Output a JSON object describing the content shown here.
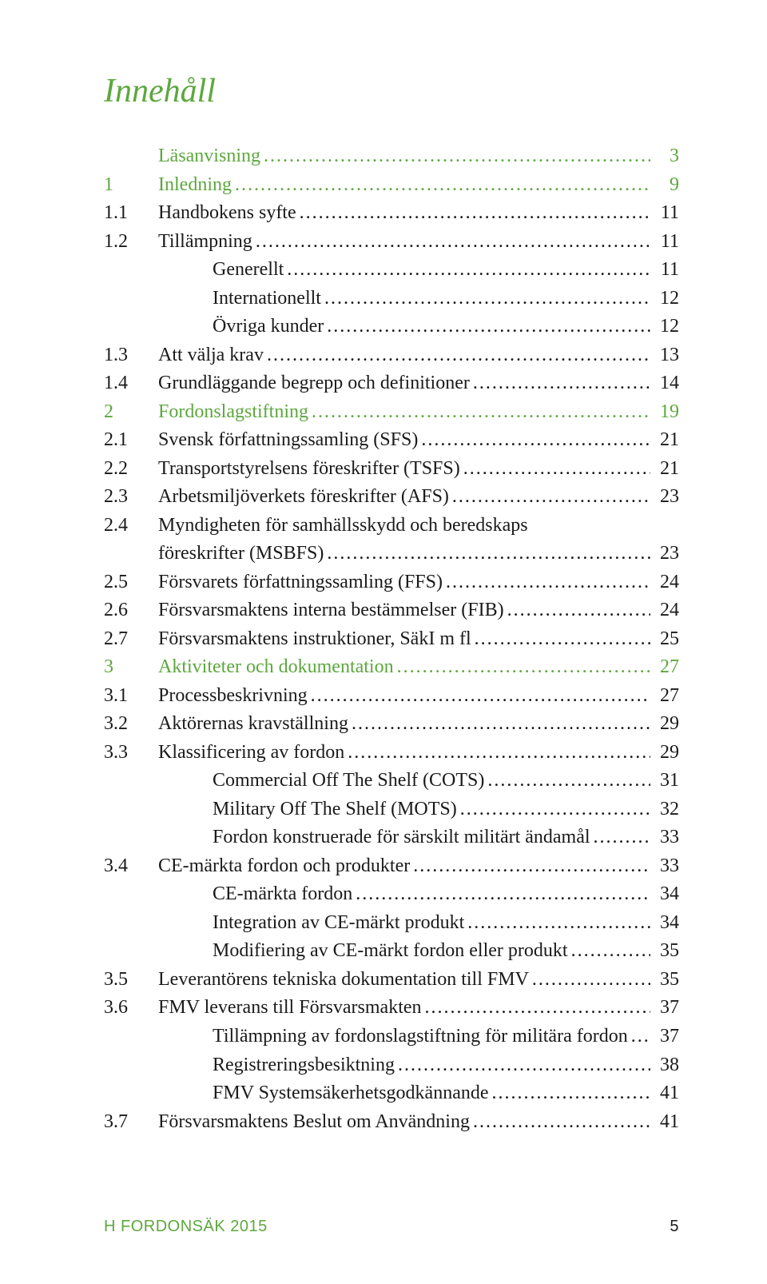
{
  "title": "Innehåll",
  "footer": {
    "left": "H FORDONSÄK 2015",
    "page": "5"
  },
  "colors": {
    "accent": "#5da73e",
    "text": "#1a1a1a",
    "bg": "#ffffff"
  },
  "entries": [
    {
      "level": 0,
      "num": "",
      "label": "Läsanvisning",
      "page": "3",
      "green": true
    },
    {
      "level": 0,
      "num": "1",
      "label": "Inledning",
      "page": "9",
      "green": true
    },
    {
      "level": 1,
      "num": "1.1",
      "label": "Handbokens syfte",
      "page": "11",
      "green": false
    },
    {
      "level": 1,
      "num": "1.2",
      "label": "Tillämpning",
      "page": "11",
      "green": false
    },
    {
      "level": 2,
      "num": "",
      "label": "Generellt",
      "page": "11",
      "green": false
    },
    {
      "level": 2,
      "num": "",
      "label": "Internationellt",
      "page": "12",
      "green": false
    },
    {
      "level": 2,
      "num": "",
      "label": "Övriga kunder",
      "page": "12",
      "green": false
    },
    {
      "level": 1,
      "num": "1.3",
      "label": "Att välja krav",
      "page": "13",
      "green": false
    },
    {
      "level": 1,
      "num": "1.4",
      "label": "Grundläggande begrepp och definitioner",
      "page": "14",
      "green": false
    },
    {
      "level": 0,
      "num": "2",
      "label": "Fordonslagstiftning",
      "page": "19",
      "green": true
    },
    {
      "level": 1,
      "num": "2.1",
      "label": "Svensk författningssamling (SFS)",
      "page": "21",
      "green": false
    },
    {
      "level": 1,
      "num": "2.2",
      "label": "Transportstyrelsens föreskrifter (TSFS)",
      "page": "21",
      "green": false
    },
    {
      "level": 1,
      "num": "2.3",
      "label": "Arbetsmiljöverkets föreskrifter (AFS)",
      "page": "23",
      "green": false
    },
    {
      "level": 1,
      "num": "2.4",
      "label": "Myndigheten för samhällsskydd och beredskaps",
      "page": "",
      "green": false,
      "nodots": true
    },
    {
      "level": 1,
      "num": "",
      "label": "föreskrifter (MSBFS)",
      "page": "23",
      "green": false
    },
    {
      "level": 1,
      "num": "2.5",
      "label": "Försvarets författningssamling (FFS)",
      "page": "24",
      "green": false
    },
    {
      "level": 1,
      "num": "2.6",
      "label": "Försvarsmaktens interna bestämmelser (FIB)",
      "page": "24",
      "green": false
    },
    {
      "level": 1,
      "num": "2.7",
      "label": "Försvarsmaktens instruktioner, SäkI m fl",
      "page": "25",
      "green": false
    },
    {
      "level": 0,
      "num": "3",
      "label": "Aktiviteter och dokumentation",
      "page": "27",
      "green": true
    },
    {
      "level": 1,
      "num": "3.1",
      "label": "Processbeskrivning",
      "page": "27",
      "green": false
    },
    {
      "level": 1,
      "num": "3.2",
      "label": "Aktörernas kravställning",
      "page": "29",
      "green": false
    },
    {
      "level": 1,
      "num": "3.3",
      "label": "Klassificering av fordon",
      "page": "29",
      "green": false
    },
    {
      "level": 2,
      "num": "",
      "label": "Commercial Off The Shelf (COTS)",
      "page": "31",
      "green": false
    },
    {
      "level": 2,
      "num": "",
      "label": "Military Off The Shelf (MOTS)",
      "page": "32",
      "green": false
    },
    {
      "level": 2,
      "num": "",
      "label": "Fordon konstruerade för särskilt militärt ändamål",
      "page": "33",
      "green": false
    },
    {
      "level": 1,
      "num": "3.4",
      "label": "CE-märkta fordon och produkter",
      "page": "33",
      "green": false
    },
    {
      "level": 2,
      "num": "",
      "label": "CE-märkta fordon",
      "page": "34",
      "green": false
    },
    {
      "level": 2,
      "num": "",
      "label": "Integration av CE-märkt produkt",
      "page": "34",
      "green": false
    },
    {
      "level": 2,
      "num": "",
      "label": "Modifiering av CE-märkt fordon eller produkt",
      "page": "35",
      "green": false
    },
    {
      "level": 1,
      "num": "3.5",
      "label": "Leverantörens tekniska dokumentation till FMV",
      "page": "35",
      "green": false
    },
    {
      "level": 1,
      "num": "3.6",
      "label": "FMV leverans till Försvarsmakten",
      "page": "37",
      "green": false
    },
    {
      "level": 2,
      "num": "",
      "label": "Tillämpning av fordonslagstiftning för militära fordon",
      "page": "37",
      "green": false
    },
    {
      "level": 2,
      "num": "",
      "label": "Registreringsbesiktning",
      "page": "38",
      "green": false
    },
    {
      "level": 2,
      "num": "",
      "label": "FMV Systemsäkerhetsgodkännande",
      "page": "41",
      "green": false
    },
    {
      "level": 1,
      "num": "3.7",
      "label": "Försvarsmaktens Beslut om Användning",
      "page": "41",
      "green": false
    }
  ]
}
